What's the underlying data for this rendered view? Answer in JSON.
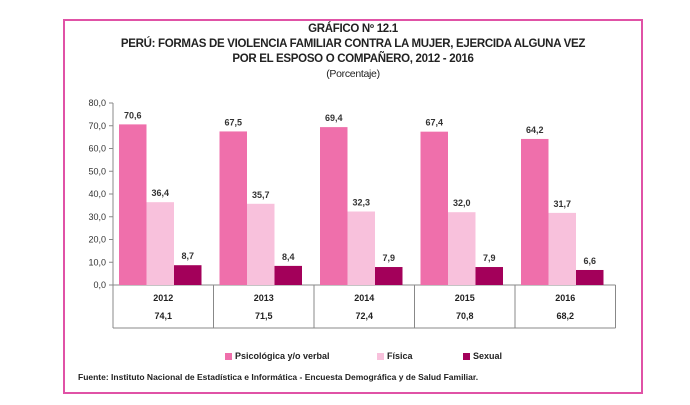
{
  "chart_data": {
    "type": "bar",
    "title": "GRÁFICO Nº 12.1",
    "subtitle_lines": [
      "PERÚ: FORMAS DE VIOLENCIA FAMILIAR CONTRA LA MUJER, EJERCIDA ALGUNA VEZ",
      "POR EL ESPOSO O COMPAÑERO, 2012 - 2016"
    ],
    "unit": "(Porcentaje)",
    "categories": [
      "2012",
      "2013",
      "2014",
      "2015",
      "2016"
    ],
    "totals": [
      "74,1",
      "71,5",
      "72,4",
      "70,8",
      "68,2"
    ],
    "series": [
      {
        "name": "Psicológica y/o verbal",
        "color": "#ef6fab",
        "values": [
          70.6,
          67.5,
          69.4,
          67.4,
          64.2
        ]
      },
      {
        "name": "Física",
        "color": "#f8c1dc",
        "values": [
          36.4,
          35.7,
          32.3,
          32.0,
          31.7
        ]
      },
      {
        "name": "Sexual",
        "color": "#a3005a",
        "values": [
          8.7,
          8.4,
          7.9,
          7.9,
          6.6
        ]
      }
    ],
    "ylim": [
      0,
      80
    ],
    "yticks": [
      "0,0",
      "10,0",
      "20,0",
      "30,0",
      "40,0",
      "50,0",
      "60,0",
      "70,0",
      "80,0"
    ],
    "grid": false,
    "legend": "bottom"
  },
  "source": "Fuente: Instituto Nacional de Estadística e Informática - Encuesta Demográfica y de Salud Familiar.",
  "frame_color": "#e052a6"
}
